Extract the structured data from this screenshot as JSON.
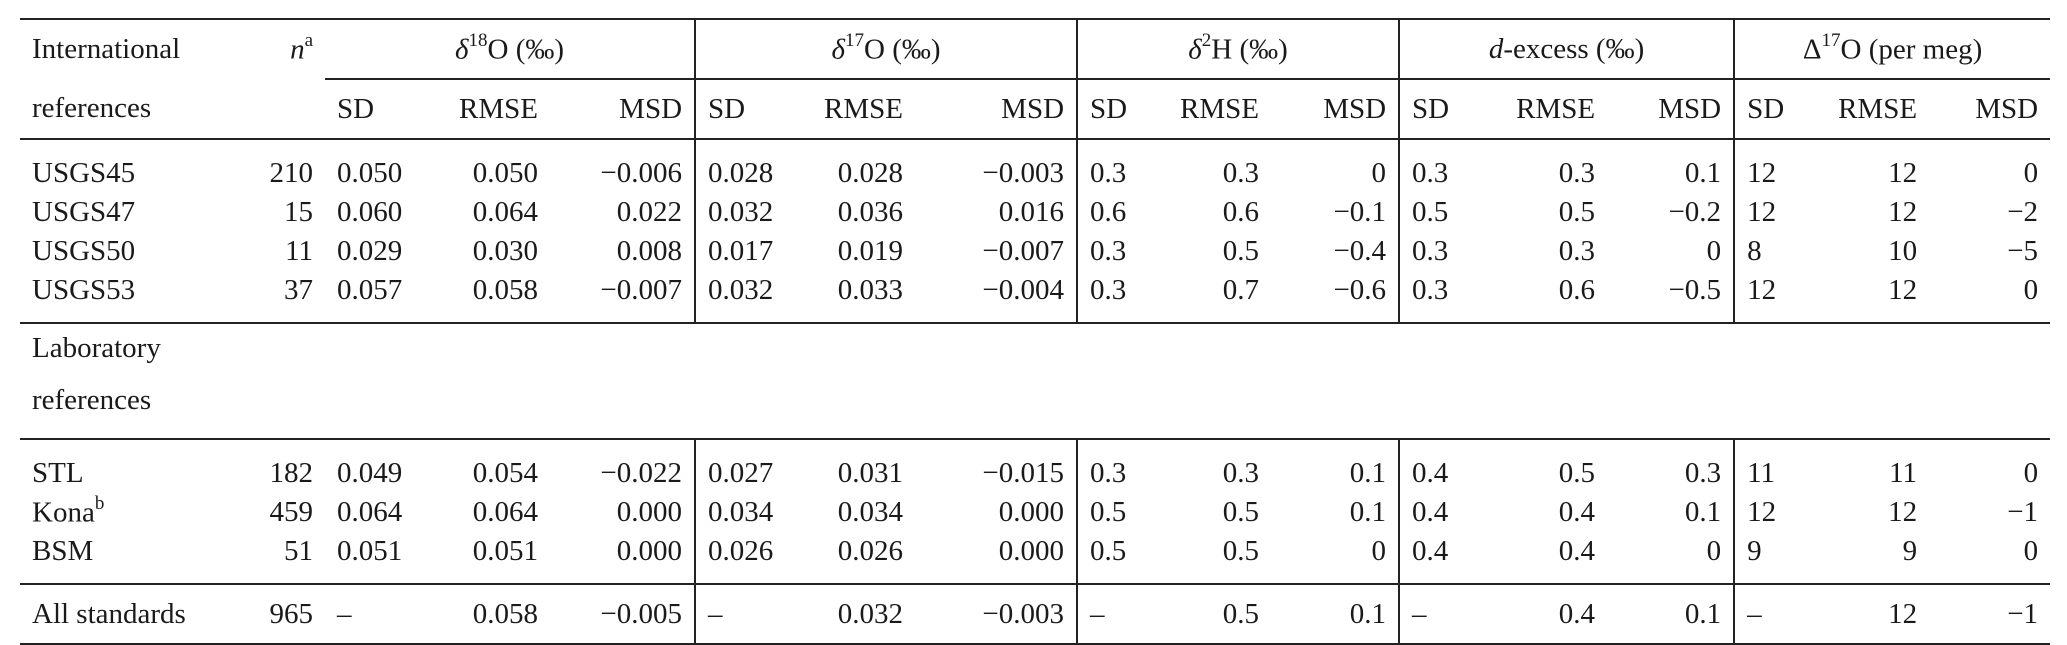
{
  "header": {
    "col_ref_line1": "International",
    "col_ref_line2": "references",
    "col_n": "n",
    "col_n_sup": "a",
    "groups": [
      {
        "pre": "δ",
        "sup": "18",
        "post": "O (‰)"
      },
      {
        "pre": "δ",
        "sup": "17",
        "post": "O (‰)"
      },
      {
        "pre": "δ",
        "sup": "2",
        "post": "H (‰)"
      },
      {
        "pre": "d",
        "sup": "",
        "post": "-excess (‰)"
      },
      {
        "pre": "Δ",
        "sup": "17",
        "post": "O (per meg)"
      }
    ],
    "sub": [
      "SD",
      "RMSE",
      "MSD"
    ]
  },
  "international": [
    {
      "name": "USGS45",
      "sup": "",
      "n": "210",
      "v": [
        "0.050",
        "0.050",
        "−0.006",
        "0.028",
        "0.028",
        "−0.003",
        "0.3",
        "0.3",
        "0",
        "0.3",
        "0.3",
        "0.1",
        "12",
        "12",
        "0"
      ]
    },
    {
      "name": "USGS47",
      "sup": "",
      "n": "15",
      "v": [
        "0.060",
        "0.064",
        "0.022",
        "0.032",
        "0.036",
        "0.016",
        "0.6",
        "0.6",
        "−0.1",
        "0.5",
        "0.5",
        "−0.2",
        "12",
        "12",
        "−2"
      ]
    },
    {
      "name": "USGS50",
      "sup": "",
      "n": "11",
      "v": [
        "0.029",
        "0.030",
        "0.008",
        "0.017",
        "0.019",
        "−0.007",
        "0.3",
        "0.5",
        "−0.4",
        "0.3",
        "0.3",
        "0",
        "8",
        "10",
        "−5"
      ]
    },
    {
      "name": "USGS53",
      "sup": "",
      "n": "37",
      "v": [
        "0.057",
        "0.058",
        "−0.007",
        "0.032",
        "0.033",
        "−0.004",
        "0.3",
        "0.7",
        "−0.6",
        "0.3",
        "0.6",
        "−0.5",
        "12",
        "12",
        "0"
      ]
    }
  ],
  "lab_heading_line1": "Laboratory",
  "lab_heading_line2": "references",
  "laboratory": [
    {
      "name": "STL",
      "sup": "",
      "n": "182",
      "v": [
        "0.049",
        "0.054",
        "−0.022",
        "0.027",
        "0.031",
        "−0.015",
        "0.3",
        "0.3",
        "0.1",
        "0.4",
        "0.5",
        "0.3",
        "11",
        "11",
        "0"
      ]
    },
    {
      "name": "Kona",
      "sup": "b",
      "n": "459",
      "v": [
        "0.064",
        "0.064",
        "0.000",
        "0.034",
        "0.034",
        "0.000",
        "0.5",
        "0.5",
        "0.1",
        "0.4",
        "0.4",
        "0.1",
        "12",
        "12",
        "−1"
      ]
    },
    {
      "name": "BSM",
      "sup": "",
      "n": "51",
      "v": [
        "0.051",
        "0.051",
        "0.000",
        "0.026",
        "0.026",
        "0.000",
        "0.5",
        "0.5",
        "0",
        "0.4",
        "0.4",
        "0",
        "9",
        "9",
        "0"
      ]
    }
  ],
  "total": {
    "name": "All standards",
    "n": "965",
    "v": [
      "–",
      "0.058",
      "−0.005",
      "–",
      "0.032",
      "−0.003",
      "–",
      "0.5",
      "0.1",
      "–",
      "0.4",
      "0.1",
      "–",
      "12",
      "−1"
    ]
  }
}
